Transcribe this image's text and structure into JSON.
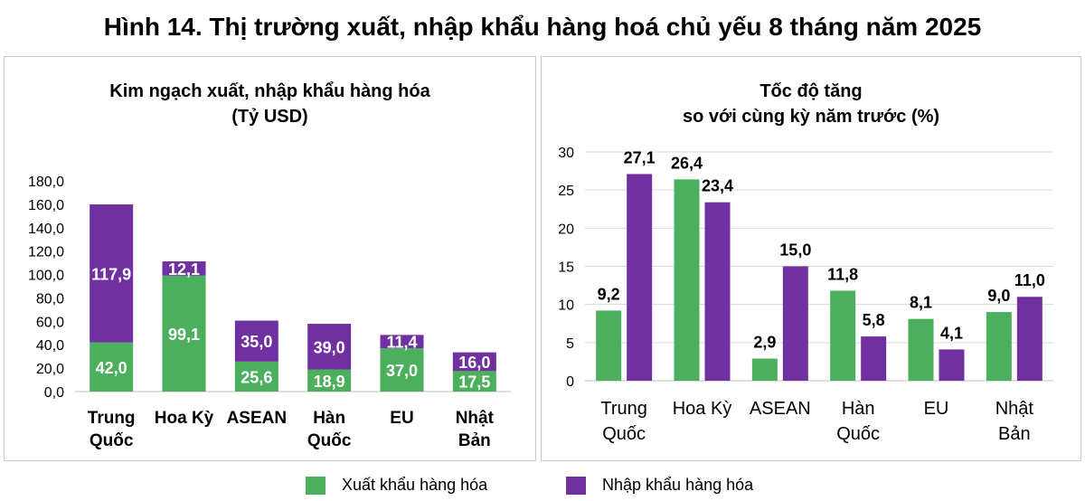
{
  "title": "Hình 14. Thị trường xuất, nhập khẩu hàng hoá chủ yếu 8 tháng năm 2025",
  "colors": {
    "export": "#4caf5d",
    "import": "#7030a0",
    "grid": "#d9d9d9"
  },
  "legend": [
    {
      "key": "export",
      "label": "Xuất khẩu hàng hóa"
    },
    {
      "key": "import",
      "label": "Nhập khẩu hàng hóa"
    }
  ],
  "chart_data": [
    {
      "type": "bar",
      "stacked": true,
      "title_lines": [
        "Kim ngạch xuất, nhập khẩu hàng hóa",
        "(Tỷ USD)"
      ],
      "categories": [
        [
          "Trung",
          "Quốc"
        ],
        [
          "Hoa Kỳ"
        ],
        [
          "ASEAN"
        ],
        [
          "Hàn",
          "Quốc"
        ],
        [
          "EU"
        ],
        [
          "Nhật",
          "Bản"
        ]
      ],
      "series": [
        {
          "name": "Xuất khẩu hàng hóa",
          "key": "export",
          "values": [
            42.0,
            99.1,
            25.6,
            18.9,
            37.0,
            17.5
          ],
          "labels": [
            "42,0",
            "99,1",
            "25,6",
            "18,9",
            "37,0",
            "17,5"
          ]
        },
        {
          "name": "Nhập khẩu hàng hóa",
          "key": "import",
          "values": [
            117.9,
            12.1,
            35.0,
            39.0,
            11.4,
            16.0
          ],
          "labels": [
            "117,9",
            "12,1",
            "35,0",
            "39,0",
            "11,4",
            "16,0"
          ]
        }
      ],
      "ylim": [
        0,
        180
      ],
      "yticks": [
        0,
        20,
        40,
        60,
        80,
        100,
        120,
        140,
        160,
        180
      ],
      "ytick_labels": [
        "0,0",
        "20,0",
        "40,0",
        "60,0",
        "80,0",
        "100,0",
        "120,0",
        "140,0",
        "160,0",
        "180,0"
      ],
      "grid": false
    },
    {
      "type": "bar",
      "stacked": false,
      "title_lines": [
        "Tốc độ tăng",
        "so với cùng kỳ năm trước (%)"
      ],
      "categories": [
        [
          "Trung",
          "Quốc"
        ],
        [
          "Hoa Kỳ"
        ],
        [
          "ASEAN"
        ],
        [
          "Hàn",
          "Quốc"
        ],
        [
          "EU"
        ],
        [
          "Nhật",
          "Bản"
        ]
      ],
      "series": [
        {
          "name": "Xuất khẩu hàng hóa",
          "key": "export",
          "values": [
            9.2,
            26.4,
            2.9,
            11.8,
            8.1,
            9.0
          ],
          "labels": [
            "9,2",
            "26,4",
            "2,9",
            "11,8",
            "8,1",
            "9,0"
          ]
        },
        {
          "name": "Nhập khẩu hàng hóa",
          "key": "import",
          "values": [
            27.1,
            23.4,
            15.0,
            5.8,
            4.1,
            11.0
          ],
          "labels": [
            "27,1",
            "23,4",
            "15,0",
            "5,8",
            "4,1",
            "11,0"
          ]
        }
      ],
      "ylim": [
        0,
        30
      ],
      "yticks": [
        0,
        5,
        10,
        15,
        20,
        25,
        30
      ],
      "ytick_labels": [
        "0",
        "5",
        "10",
        "15",
        "20",
        "25",
        "30"
      ],
      "grid": true
    }
  ]
}
